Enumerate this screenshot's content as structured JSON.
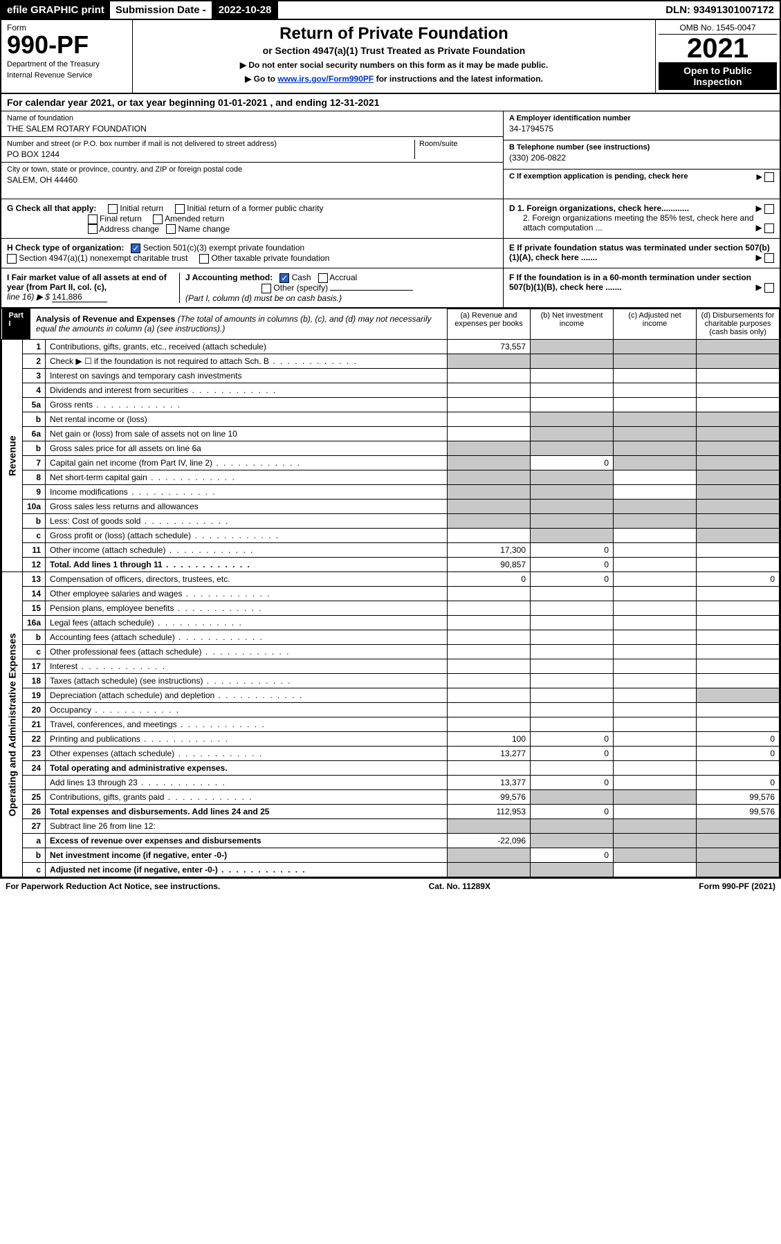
{
  "topbar": {
    "efile": "efile GRAPHIC print",
    "sub_label": "Submission Date - ",
    "sub_date": "2022-10-28",
    "dln": "DLN: 93491301007172"
  },
  "header": {
    "form_label": "Form",
    "form_number": "990-PF",
    "dept1": "Department of the Treasury",
    "dept2": "Internal Revenue Service",
    "title": "Return of Private Foundation",
    "subtitle": "or Section 4947(a)(1) Trust Treated as Private Foundation",
    "instr1": "▶ Do not enter social security numbers on this form as it may be made public.",
    "instr2_pre": "▶ Go to ",
    "instr2_link": "www.irs.gov/Form990PF",
    "instr2_post": " for instructions and the latest information.",
    "omb": "OMB No. 1545-0047",
    "year": "2021",
    "open": "Open to Public Inspection"
  },
  "cal_year": "For calendar year 2021, or tax year beginning 01-01-2021                        , and ending 12-31-2021",
  "info": {
    "name_label": "Name of foundation",
    "name": "THE SALEM ROTARY FOUNDATION",
    "addr_label": "Number and street (or P.O. box number if mail is not delivered to street address)",
    "addr": "PO BOX 1244",
    "room_label": "Room/suite",
    "city_label": "City or town, state or province, country, and ZIP or foreign postal code",
    "city": "SALEM, OH  44460",
    "ein_label": "A Employer identification number",
    "ein": "34-1794575",
    "tel_label": "B Telephone number (see instructions)",
    "tel": "(330) 206-0822",
    "c_label": "C If exemption application is pending, check here",
    "d1": "D 1. Foreign organizations, check here............",
    "d2": "2. Foreign organizations meeting the 85% test, check here and attach computation ...",
    "e_label": "E If private foundation status was terminated under section 507(b)(1)(A), check here .......",
    "f_label": "F If the foundation is in a 60-month termination under section 507(b)(1)(B), check here .......",
    "g_label": "G Check all that apply:",
    "g_opts": [
      "Initial return",
      "Initial return of a former public charity",
      "Final return",
      "Amended return",
      "Address change",
      "Name change"
    ],
    "h_label": "H Check type of organization:",
    "h_opts": [
      "Section 501(c)(3) exempt private foundation",
      "Section 4947(a)(1) nonexempt charitable trust",
      "Other taxable private foundation"
    ],
    "i_label": "I Fair market value of all assets at end of year (from Part II, col. (c),",
    "i_line": "line 16) ▶ $",
    "i_value": "141,886",
    "j_label": "J Accounting method:",
    "j_opts": [
      "Cash",
      "Accrual",
      "Other (specify)"
    ],
    "j_note": "(Part I, column (d) must be on cash basis.)"
  },
  "part1": {
    "label": "Part I",
    "title": "Analysis of Revenue and Expenses",
    "title_note": "(The total of amounts in columns (b), (c), and (d) may not necessarily equal the amounts in column (a) (see instructions).)",
    "col_a": "(a)   Revenue and expenses per books",
    "col_b": "(b)   Net investment income",
    "col_c": "(c)   Adjusted net income",
    "col_d": "(d)   Disbursements for charitable purposes (cash basis only)",
    "side_revenue": "Revenue",
    "side_expenses": "Operating and Administrative Expenses"
  },
  "lines": [
    {
      "n": "1",
      "d": "Contributions, gifts, grants, etc., received (attach schedule)",
      "a": "73,557",
      "sb": true,
      "sc": true,
      "sd": true
    },
    {
      "n": "2",
      "d": "Check ▶ ☐ if the foundation is not required to attach Sch. B",
      "dots": true,
      "sa": true,
      "sb": true,
      "sc": true,
      "sd": true
    },
    {
      "n": "3",
      "d": "Interest on savings and temporary cash investments"
    },
    {
      "n": "4",
      "d": "Dividends and interest from securities",
      "dots": true
    },
    {
      "n": "5a",
      "d": "Gross rents",
      "dots": true
    },
    {
      "n": "b",
      "d": "Net rental income or (loss)",
      "sa_partial": true,
      "sb": true,
      "sc": true,
      "sd": true
    },
    {
      "n": "6a",
      "d": "Net gain or (loss) from sale of assets not on line 10",
      "sb": true,
      "sc": true,
      "sd": true
    },
    {
      "n": "b",
      "d": "Gross sales price for all assets on line 6a",
      "sa": true,
      "sb": true,
      "sc": true,
      "sd": true
    },
    {
      "n": "7",
      "d": "Capital gain net income (from Part IV, line 2)",
      "dots": true,
      "sa": true,
      "b": "0",
      "sc": true,
      "sd": true
    },
    {
      "n": "8",
      "d": "Net short-term capital gain",
      "dots": true,
      "sa": true,
      "sb": true,
      "sd": true
    },
    {
      "n": "9",
      "d": "Income modifications",
      "dots": true,
      "sa": true,
      "sb": true,
      "sd": true
    },
    {
      "n": "10a",
      "d": "Gross sales less returns and allowances",
      "sa": true,
      "sb": true,
      "sc": true,
      "sd": true
    },
    {
      "n": "b",
      "d": "Less: Cost of goods sold",
      "dots": true,
      "sa": true,
      "sb": true,
      "sc": true,
      "sd": true
    },
    {
      "n": "c",
      "d": "Gross profit or (loss) (attach schedule)",
      "dots": true,
      "sb": true,
      "sd": true
    },
    {
      "n": "11",
      "d": "Other income (attach schedule)",
      "dots": true,
      "a": "17,300",
      "b": "0"
    },
    {
      "n": "12",
      "d": "Total. Add lines 1 through 11",
      "dots": true,
      "bold": true,
      "a": "90,857",
      "b": "0"
    },
    {
      "n": "13",
      "d": "Compensation of officers, directors, trustees, etc.",
      "a": "0",
      "b": "0",
      "dd": "0"
    },
    {
      "n": "14",
      "d": "Other employee salaries and wages",
      "dots": true
    },
    {
      "n": "15",
      "d": "Pension plans, employee benefits",
      "dots": true
    },
    {
      "n": "16a",
      "d": "Legal fees (attach schedule)",
      "dots": true
    },
    {
      "n": "b",
      "d": "Accounting fees (attach schedule)",
      "dots": true
    },
    {
      "n": "c",
      "d": "Other professional fees (attach schedule)",
      "dots": true
    },
    {
      "n": "17",
      "d": "Interest",
      "dots": true
    },
    {
      "n": "18",
      "d": "Taxes (attach schedule) (see instructions)",
      "dots": true
    },
    {
      "n": "19",
      "d": "Depreciation (attach schedule) and depletion",
      "dots": true,
      "sd": true
    },
    {
      "n": "20",
      "d": "Occupancy",
      "dots": true
    },
    {
      "n": "21",
      "d": "Travel, conferences, and meetings",
      "dots": true
    },
    {
      "n": "22",
      "d": "Printing and publications",
      "dots": true,
      "a": "100",
      "b": "0",
      "dd": "0"
    },
    {
      "n": "23",
      "d": "Other expenses (attach schedule)",
      "dots": true,
      "a": "13,277",
      "b": "0",
      "dd": "0"
    },
    {
      "n": "24",
      "d": "Total operating and administrative expenses.",
      "bold": true
    },
    {
      "n": "",
      "d": "Add lines 13 through 23",
      "dots": true,
      "a": "13,377",
      "b": "0",
      "dd": "0",
      "indent": true
    },
    {
      "n": "25",
      "d": "Contributions, gifts, grants paid",
      "dots": true,
      "a": "99,576",
      "sb": true,
      "sc": true,
      "dd": "99,576"
    },
    {
      "n": "26",
      "d": "Total expenses and disbursements. Add lines 24 and 25",
      "bold": true,
      "a": "112,953",
      "b": "0",
      "dd": "99,576"
    },
    {
      "n": "27",
      "d": "Subtract line 26 from line 12:",
      "sa": true,
      "sb": true,
      "sc": true,
      "sd": true
    },
    {
      "n": "a",
      "d": "Excess of revenue over expenses and disbursements",
      "bold": true,
      "a": "-22,096",
      "sb": true,
      "sc": true,
      "sd": true
    },
    {
      "n": "b",
      "d": "Net investment income (if negative, enter -0-)",
      "bold": true,
      "sa": true,
      "b": "0",
      "sc": true,
      "sd": true
    },
    {
      "n": "c",
      "d": "Adjusted net income (if negative, enter -0-)",
      "dots": true,
      "bold": true,
      "sa": true,
      "sb": true,
      "sd": true
    }
  ],
  "footer": {
    "left": "For Paperwork Reduction Act Notice, see instructions.",
    "mid": "Cat. No. 11289X",
    "right": "Form 990-PF (2021)"
  }
}
